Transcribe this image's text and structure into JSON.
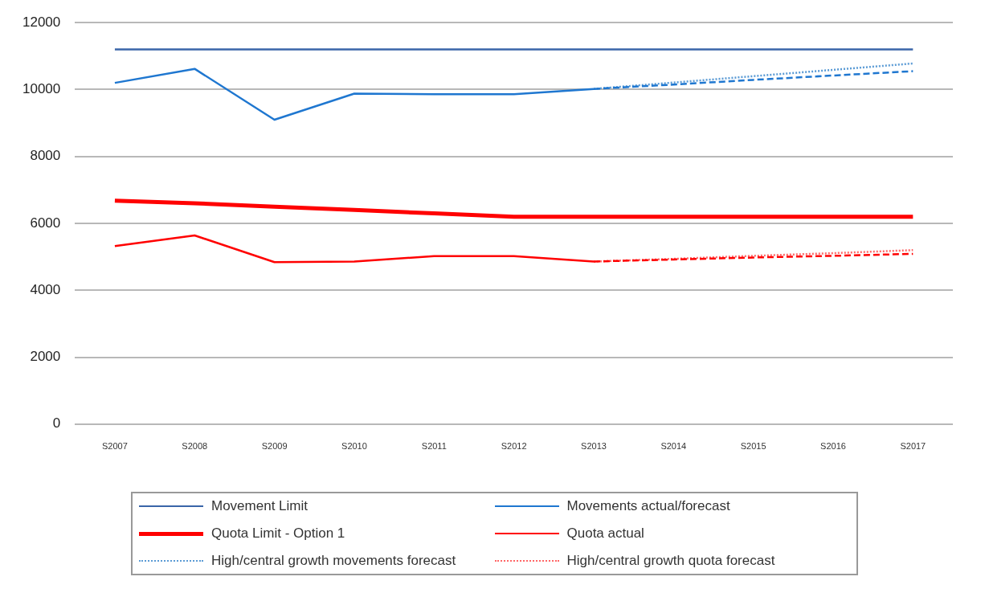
{
  "chart_data": {
    "type": "line",
    "categories": [
      "S2007",
      "S2008",
      "S2009",
      "S2010",
      "S2011",
      "S2012",
      "S2013",
      "S2014",
      "S2015",
      "S2016",
      "S2017"
    ],
    "ylim": [
      0,
      12000
    ],
    "yticks": [
      0,
      2000,
      4000,
      6000,
      8000,
      10000,
      12000
    ],
    "grid": "y",
    "legend": "bottom",
    "marker": "none",
    "series": [
      {
        "name": "Movement Limit",
        "color": "#3a65a8",
        "line_style": "solid",
        "values": [
          11200,
          11200,
          11200,
          11200,
          11200,
          11200,
          11200,
          11200,
          11200,
          11200,
          11200
        ]
      },
      {
        "name": "Movements actual/forecast",
        "color": "#1f77d0",
        "line_style": "solid",
        "values": [
          10200,
          10620,
          9100,
          9880,
          9860,
          9860,
          10020,
          null,
          null,
          null,
          null
        ]
      },
      {
        "color": "#1f77d0",
        "line_style": "dashed",
        "values": [
          null,
          null,
          null,
          null,
          null,
          null,
          10020,
          10150,
          10290,
          10420,
          10550
        ]
      },
      {
        "name": "Quota Limit - Option 1",
        "color": "#ff0000",
        "line_style": "solid",
        "values": [
          6680,
          6600,
          6500,
          6400,
          6300,
          6200,
          6200,
          6200,
          6200,
          6200,
          6200
        ]
      },
      {
        "name": "Quota actual",
        "color": "#ff0000",
        "line_style": "solid",
        "values": [
          5320,
          5640,
          4840,
          4860,
          5020,
          5020,
          4860,
          null,
          null,
          null,
          null
        ]
      },
      {
        "color": "#ff0000",
        "line_style": "dashed",
        "values": [
          null,
          null,
          null,
          null,
          null,
          null,
          4860,
          4920,
          4980,
          5030,
          5090
        ]
      },
      {
        "name": "High/central growth movements forecast",
        "color": "#5b9bd5",
        "line_style": "dotted",
        "values": [
          null,
          null,
          null,
          null,
          null,
          null,
          10020,
          10210,
          10400,
          10590,
          10780
        ]
      },
      {
        "name": "High/central growth quota forecast",
        "color": "#ff6666",
        "line_style": "dotted",
        "values": [
          null,
          null,
          null,
          null,
          null,
          null,
          4860,
          4940,
          5030,
          5110,
          5200
        ]
      }
    ]
  }
}
